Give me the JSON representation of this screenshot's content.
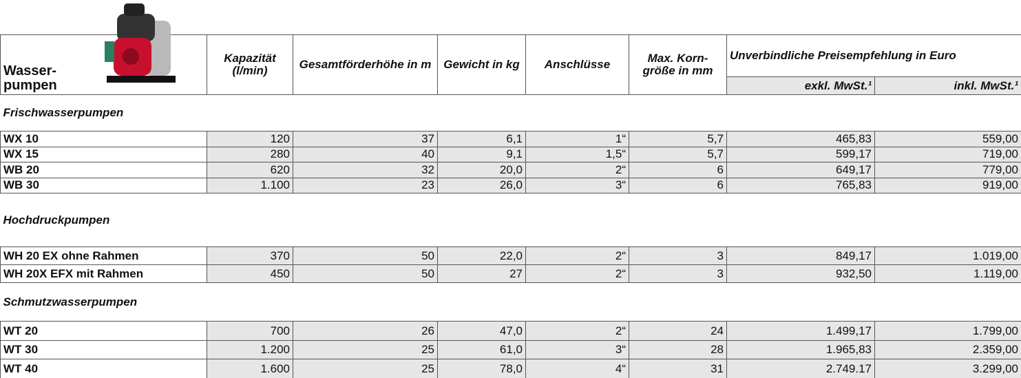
{
  "header": {
    "title": "Wasser-pumpen",
    "columns": [
      "Kapazität (l/min)",
      "Gesamtförderhöhe in m",
      "Gewicht in kg",
      "Anschlüsse",
      "Max. Korn-größe in mm"
    ],
    "price_group": "Unverbindliche Preisempfehlung in Euro",
    "price_columns": [
      "exkl. MwSt.¹",
      "inkl. MwSt.¹"
    ]
  },
  "sections": [
    {
      "name": "Frischwasserpumpen",
      "rows": [
        [
          "WX 10",
          "120",
          "37",
          "6,1",
          "1“",
          "5,7",
          "465,83",
          "559,00"
        ],
        [
          "WX 15",
          "280",
          "40",
          "9,1",
          "1,5“",
          "5,7",
          "599,17",
          "719,00"
        ],
        [
          "WB 20",
          "620",
          "32",
          "20,0",
          "2“",
          "6",
          "649,17",
          "779,00"
        ],
        [
          "WB 30",
          "1.100",
          "23",
          "26,0",
          "3“",
          "6",
          "765,83",
          "919,00"
        ]
      ]
    },
    {
      "name": "Hochdruckpumpen",
      "rows": [
        [
          "WH 20 EX ohne Rahmen",
          "370",
          "50",
          "22,0",
          "2“",
          "3",
          "849,17",
          "1.019,00"
        ],
        [
          "WH 20X EFX mit Rahmen",
          "450",
          "50",
          "27",
          "2“",
          "3",
          "932,50",
          "1.119,00"
        ]
      ]
    },
    {
      "name": "Schmutzwasserpumpen",
      "rows": [
        [
          "WT 20",
          "700",
          "26",
          "47,0",
          "2“",
          "24",
          "1.499,17",
          "1.799,00"
        ],
        [
          "WT 30",
          "1.200",
          "25",
          "61,0",
          "3“",
          "28",
          "1.965,83",
          "2.359,00"
        ],
        [
          "WT 40",
          "1.600",
          "25",
          "78,0",
          "4“",
          "31",
          "2.749.17",
          "3.299,00"
        ]
      ]
    }
  ]
}
